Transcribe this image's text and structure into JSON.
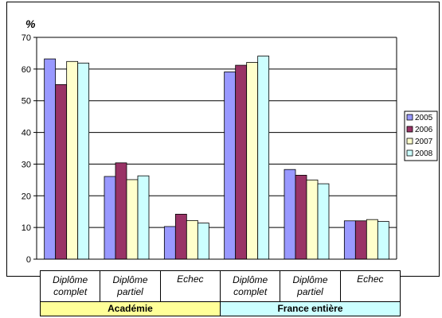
{
  "chart_data": {
    "type": "bar",
    "ylabel": "%",
    "ylim": [
      0,
      70
    ],
    "yticks": [
      0,
      10,
      20,
      30,
      40,
      50,
      60,
      70
    ],
    "grid": true,
    "legend_position": "right",
    "categories": [
      {
        "line1": "Diplôme",
        "line2": "complet",
        "group": "Académie"
      },
      {
        "line1": "Diplôme",
        "line2": "partiel",
        "group": "Académie"
      },
      {
        "line1": "Echec",
        "line2": "",
        "group": "Académie"
      },
      {
        "line1": "Diplôme",
        "line2": "complet",
        "group": "France entière"
      },
      {
        "line1": "Diplôme",
        "line2": "partiel",
        "group": "France entière"
      },
      {
        "line1": "Echec",
        "line2": "",
        "group": "France entière"
      }
    ],
    "groups": [
      {
        "label": "Académie",
        "color": "#ffff99"
      },
      {
        "label": "France entière",
        "color": "#ccffff"
      }
    ],
    "series": [
      {
        "name": "2005",
        "color": "#9999ff",
        "values": [
          63.2,
          26.1,
          10.3,
          59.1,
          28.3,
          12.1
        ]
      },
      {
        "name": "2006",
        "color": "#993366",
        "values": [
          55.1,
          30.4,
          14.2,
          61.2,
          26.5,
          12.1
        ]
      },
      {
        "name": "2007",
        "color": "#ffffcc",
        "values": [
          62.4,
          25.1,
          12.2,
          62.1,
          25.0,
          12.5
        ]
      },
      {
        "name": "2008",
        "color": "#ccffff",
        "values": [
          61.9,
          26.3,
          11.4,
          64.1,
          23.8,
          11.9
        ]
      }
    ]
  }
}
